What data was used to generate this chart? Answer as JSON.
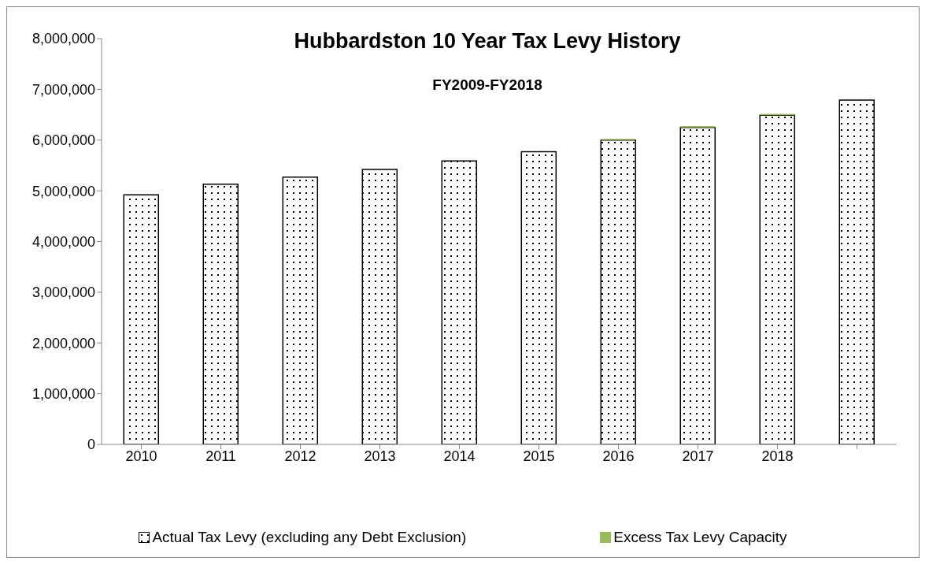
{
  "chart_data": {
    "type": "bar",
    "title": "Hubbardston 10 Year Tax Levy History",
    "subtitle": "FY2009-FY2018",
    "categories": [
      "2010",
      "2011",
      "2012",
      "2013",
      "2014",
      "2015",
      "2016",
      "2017",
      "2018",
      null
    ],
    "stacked": true,
    "series": [
      {
        "name": "Actual Tax Levy (excluding any Debt Exclusion)",
        "color": "#000000",
        "values": [
          4920000,
          5130000,
          5270000,
          5420000,
          5590000,
          5770000,
          6000000,
          6250000,
          6490000,
          6790000
        ]
      },
      {
        "name": "Excess Tax Levy Capacity",
        "color": "#9bbb59",
        "values": [
          null,
          null,
          null,
          null,
          null,
          null,
          25000,
          25000,
          25000,
          null
        ]
      }
    ],
    "ylim": [
      0,
      8000000
    ],
    "yticks": [
      {
        "value": 0,
        "label": "0"
      },
      {
        "value": 1000000,
        "label": "1,000,000"
      },
      {
        "value": 2000000,
        "label": "2,000,000"
      },
      {
        "value": 3000000,
        "label": "3,000,000"
      },
      {
        "value": 4000000,
        "label": "4,000,000"
      },
      {
        "value": 5000000,
        "label": "5,000,000"
      },
      {
        "value": 6000000,
        "label": "6,000,000"
      },
      {
        "value": 7000000,
        "label": "7,000,000"
      },
      {
        "value": 8000000,
        "label": "8,000,000"
      }
    ],
    "legend": "bottom"
  }
}
